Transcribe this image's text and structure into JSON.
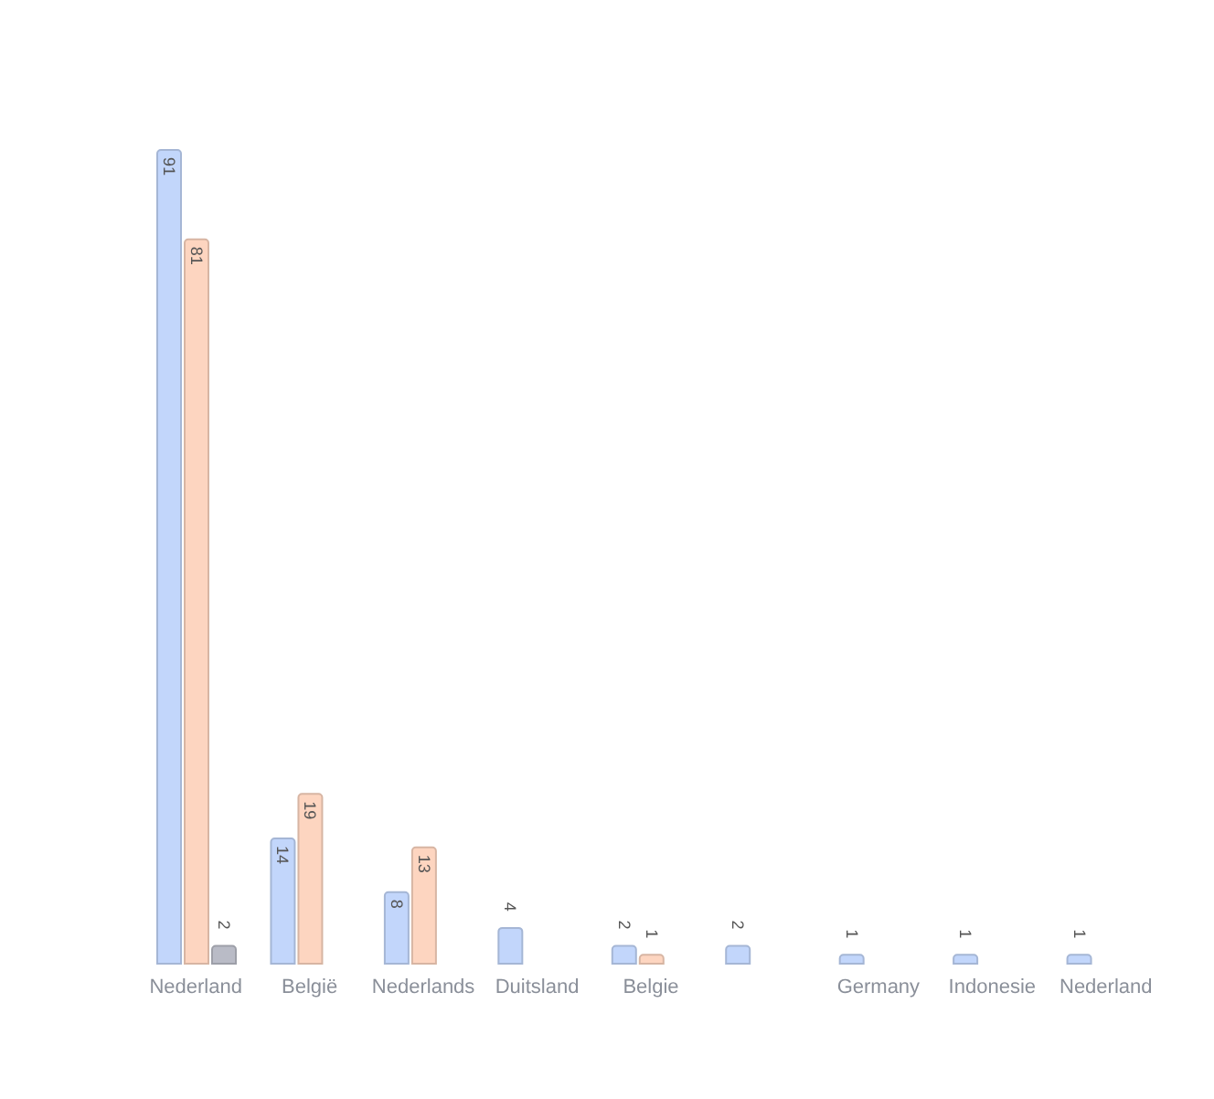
{
  "chart_data": {
    "type": "bar",
    "categories": [
      "Nederland",
      "België",
      "Nederlands",
      "Duitsland",
      "Belgie",
      null,
      "Germany",
      "Indonesie",
      "Nederland"
    ],
    "series": [
      {
        "color": "#c2d6fb",
        "values": [
          91,
          14,
          8,
          4,
          2,
          2,
          1,
          1,
          1
        ]
      },
      {
        "color": "#fdd5c0",
        "values": [
          81,
          19,
          13,
          null,
          1,
          null,
          null,
          null,
          null
        ]
      },
      {
        "color": "#b9bbc6",
        "values": [
          2,
          null,
          null,
          null,
          null,
          null,
          null,
          null,
          null
        ]
      }
    ],
    "data_labels": true,
    "legend": false,
    "grid": false
  }
}
